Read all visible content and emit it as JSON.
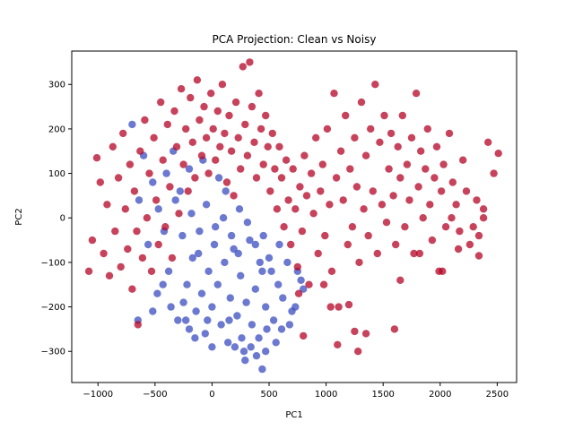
{
  "chart_data": {
    "type": "scatter",
    "title": "PCA Projection: Clean vs Noisy",
    "xlabel": "PC1",
    "ylabel": "PC2",
    "xlim": [
      -1230,
      2670
    ],
    "ylim": [
      -370,
      375
    ],
    "xticks": [
      -1000,
      -500,
      0,
      500,
      1000,
      1500,
      2000,
      2500
    ],
    "yticks": [
      -300,
      -200,
      -100,
      0,
      100,
      200,
      300
    ],
    "xtick_labels": [
      "−1000",
      "−500",
      "0",
      "500",
      "1000",
      "1500",
      "2000",
      "2500"
    ],
    "ytick_labels": [
      "−300",
      "−200",
      "−100",
      "0",
      "100",
      "200",
      "300"
    ],
    "grid": false,
    "legend": "none",
    "marker_alpha": 0.75,
    "series": [
      {
        "color": "#3b4cc0",
        "description_points": "clean samples concentrated near the centre-bottom",
        "points": [
          [
            -700,
            210
          ],
          [
            -640,
            40
          ],
          [
            -560,
            -60
          ],
          [
            -480,
            -170
          ],
          [
            -430,
            -150
          ],
          [
            -380,
            -120
          ],
          [
            -360,
            -200
          ],
          [
            -300,
            -230
          ],
          [
            -250,
            -190
          ],
          [
            -220,
            -150
          ],
          [
            -200,
            -250
          ],
          [
            -170,
            -90
          ],
          [
            -140,
            -210
          ],
          [
            -110,
            -30
          ],
          [
            -90,
            -170
          ],
          [
            -60,
            -260
          ],
          [
            -30,
            -120
          ],
          [
            0,
            -200
          ],
          [
            20,
            -60
          ],
          [
            50,
            -150
          ],
          [
            80,
            -240
          ],
          [
            110,
            -100
          ],
          [
            140,
            -280
          ],
          [
            160,
            -180
          ],
          [
            190,
            -70
          ],
          [
            220,
            -220
          ],
          [
            250,
            -130
          ],
          [
            280,
            -300
          ],
          [
            300,
            -190
          ],
          [
            330,
            -50
          ],
          [
            350,
            -240
          ],
          [
            380,
            -160
          ],
          [
            410,
            -270
          ],
          [
            440,
            -120
          ],
          [
            470,
            -200
          ],
          [
            500,
            -90
          ],
          [
            540,
            -230
          ],
          [
            580,
            -150
          ],
          [
            620,
            -180
          ],
          [
            660,
            -100
          ],
          [
            700,
            -210
          ],
          [
            750,
            -120
          ],
          [
            800,
            -160
          ],
          [
            -600,
            140
          ],
          [
            -520,
            80
          ],
          [
            -470,
            20
          ],
          [
            -420,
            -30
          ],
          [
            -320,
            40
          ],
          [
            -260,
            -40
          ],
          [
            -180,
            10
          ],
          [
            -120,
            -80
          ],
          [
            -50,
            30
          ],
          [
            30,
            -20
          ],
          [
            100,
            0
          ],
          [
            170,
            -40
          ],
          [
            240,
            20
          ],
          [
            310,
            -10
          ],
          [
            380,
            -60
          ],
          [
            450,
            -40
          ],
          [
            520,
            -120
          ],
          [
            560,
            -280
          ],
          [
            390,
            -310
          ],
          [
            440,
            -340
          ],
          [
            470,
            -300
          ],
          [
            290,
            -320
          ],
          [
            200,
            -290
          ],
          [
            -150,
            -270
          ],
          [
            -230,
            -230
          ],
          [
            -520,
            -210
          ],
          [
            -650,
            -230
          ],
          [
            -280,
            60
          ],
          [
            -200,
            110
          ],
          [
            -80,
            130
          ],
          [
            60,
            90
          ],
          [
            -400,
            100
          ],
          [
            -340,
            150
          ],
          [
            120,
            60
          ],
          [
            260,
            -270
          ],
          [
            340,
            -290
          ],
          [
            -40,
            -230
          ],
          [
            0,
            -290
          ],
          [
            150,
            -230
          ],
          [
            480,
            -250
          ],
          [
            610,
            -250
          ],
          [
            680,
            -240
          ],
          [
            730,
            -200
          ],
          [
            780,
            -140
          ],
          [
            590,
            -60
          ],
          [
            420,
            -100
          ],
          [
            230,
            -80
          ]
        ]
      },
      {
        "color": "#b40426",
        "description_points": "noisy samples spread widely, dense cluster at left and a spread-out cloud to the right",
        "points": [
          [
            -1050,
            -50
          ],
          [
            -1080,
            -120
          ],
          [
            -1010,
            135
          ],
          [
            -980,
            80
          ],
          [
            -950,
            -80
          ],
          [
            -920,
            30
          ],
          [
            -900,
            -130
          ],
          [
            -870,
            160
          ],
          [
            -850,
            -30
          ],
          [
            -820,
            90
          ],
          [
            -800,
            -110
          ],
          [
            -780,
            190
          ],
          [
            -760,
            20
          ],
          [
            -740,
            -70
          ],
          [
            -720,
            120
          ],
          [
            -700,
            -160
          ],
          [
            -680,
            60
          ],
          [
            -660,
            -30
          ],
          [
            -650,
            -240
          ],
          [
            -630,
            150
          ],
          [
            -610,
            -90
          ],
          [
            -590,
            220
          ],
          [
            -570,
            0
          ],
          [
            -550,
            100
          ],
          [
            -530,
            -120
          ],
          [
            -510,
            180
          ],
          [
            -490,
            40
          ],
          [
            -470,
            -60
          ],
          [
            -450,
            260
          ],
          [
            -430,
            130
          ],
          [
            -410,
            -20
          ],
          [
            -390,
            210
          ],
          [
            -370,
            70
          ],
          [
            -350,
            -90
          ],
          [
            -330,
            240
          ],
          [
            -310,
            160
          ],
          [
            -290,
            10
          ],
          [
            -270,
            290
          ],
          [
            -250,
            120
          ],
          [
            -230,
            200
          ],
          [
            -210,
            60
          ],
          [
            -190,
            270
          ],
          [
            -170,
            170
          ],
          [
            -150,
            90
          ],
          [
            -130,
            310
          ],
          [
            -110,
            220
          ],
          [
            -90,
            140
          ],
          [
            -70,
            250
          ],
          [
            -50,
            180
          ],
          [
            -30,
            100
          ],
          [
            -10,
            280
          ],
          [
            10,
            200
          ],
          [
            30,
            130
          ],
          [
            50,
            240
          ],
          [
            70,
            160
          ],
          [
            90,
            300
          ],
          [
            110,
            190
          ],
          [
            130,
            80
          ],
          [
            150,
            230
          ],
          [
            170,
            150
          ],
          [
            190,
            50
          ],
          [
            210,
            260
          ],
          [
            230,
            180
          ],
          [
            250,
            110
          ],
          [
            270,
            340
          ],
          [
            290,
            210
          ],
          [
            310,
            140
          ],
          [
            330,
            350
          ],
          [
            350,
            250
          ],
          [
            370,
            170
          ],
          [
            390,
            90
          ],
          [
            410,
            280
          ],
          [
            430,
            200
          ],
          [
            450,
            120
          ],
          [
            470,
            230
          ],
          [
            490,
            160
          ],
          [
            510,
            60
          ],
          [
            530,
            190
          ],
          [
            550,
            110
          ],
          [
            570,
            20
          ],
          [
            590,
            160
          ],
          [
            610,
            90
          ],
          [
            630,
            -20
          ],
          [
            650,
            130
          ],
          [
            670,
            40
          ],
          [
            690,
            -60
          ],
          [
            710,
            110
          ],
          [
            730,
            20
          ],
          [
            750,
            -110
          ],
          [
            770,
            70
          ],
          [
            790,
            -30
          ],
          [
            810,
            140
          ],
          [
            830,
            50
          ],
          [
            850,
            -150
          ],
          [
            870,
            100
          ],
          [
            890,
            10
          ],
          [
            910,
            180
          ],
          [
            930,
            -80
          ],
          [
            950,
            60
          ],
          [
            970,
            120
          ],
          [
            990,
            -40
          ],
          [
            1010,
            200
          ],
          [
            1030,
            30
          ],
          [
            1050,
            -120
          ],
          [
            1070,
            280
          ],
          [
            1090,
            90
          ],
          [
            1110,
            -200
          ],
          [
            1130,
            150
          ],
          [
            1150,
            40
          ],
          [
            1170,
            230
          ],
          [
            1190,
            -60
          ],
          [
            1210,
            110
          ],
          [
            1230,
            -20
          ],
          [
            1250,
            180
          ],
          [
            1270,
            70
          ],
          [
            1290,
            -100
          ],
          [
            1310,
            260
          ],
          [
            1330,
            20
          ],
          [
            1350,
            140
          ],
          [
            1370,
            -40
          ],
          [
            1390,
            200
          ],
          [
            1410,
            60
          ],
          [
            1430,
            300
          ],
          [
            1450,
            -80
          ],
          [
            1470,
            170
          ],
          [
            1490,
            30
          ],
          [
            1510,
            230
          ],
          [
            1530,
            -10
          ],
          [
            1550,
            110
          ],
          [
            1570,
            190
          ],
          [
            1590,
            50
          ],
          [
            1610,
            -60
          ],
          [
            1630,
            160
          ],
          [
            1650,
            90
          ],
          [
            1670,
            230
          ],
          [
            1690,
            -20
          ],
          [
            1710,
            120
          ],
          [
            1730,
            40
          ],
          [
            1750,
            180
          ],
          [
            1770,
            -80
          ],
          [
            1790,
            280
          ],
          [
            1810,
            70
          ],
          [
            1830,
            150
          ],
          [
            1850,
            0
          ],
          [
            1870,
            110
          ],
          [
            1890,
            200
          ],
          [
            1910,
            30
          ],
          [
            1930,
            -50
          ],
          [
            1950,
            90
          ],
          [
            1970,
            160
          ],
          [
            1990,
            -120
          ],
          [
            2010,
            60
          ],
          [
            2030,
            120
          ],
          [
            2050,
            -20
          ],
          [
            2080,
            190
          ],
          [
            2110,
            80
          ],
          [
            2140,
            30
          ],
          [
            2170,
            -30
          ],
          [
            2200,
            130
          ],
          [
            2230,
            60
          ],
          [
            2260,
            -60
          ],
          [
            2290,
            -20
          ],
          [
            2320,
            40
          ],
          [
            2340,
            -40
          ],
          [
            2380,
            20
          ],
          [
            2420,
            170
          ],
          [
            2470,
            100
          ],
          [
            2510,
            145
          ],
          [
            1280,
            -300
          ],
          [
            1250,
            -255
          ],
          [
            1200,
            -195
          ],
          [
            1100,
            -285
          ],
          [
            1040,
            -200
          ],
          [
            980,
            -150
          ],
          [
            800,
            -265
          ],
          [
            760,
            -170
          ],
          [
            1600,
            -250
          ],
          [
            1350,
            -260
          ],
          [
            2020,
            -120
          ],
          [
            2340,
            -85
          ],
          [
            2380,
            0
          ],
          [
            2160,
            -70
          ],
          [
            2100,
            0
          ],
          [
            1820,
            -80
          ],
          [
            1650,
            -140
          ]
        ]
      }
    ]
  }
}
